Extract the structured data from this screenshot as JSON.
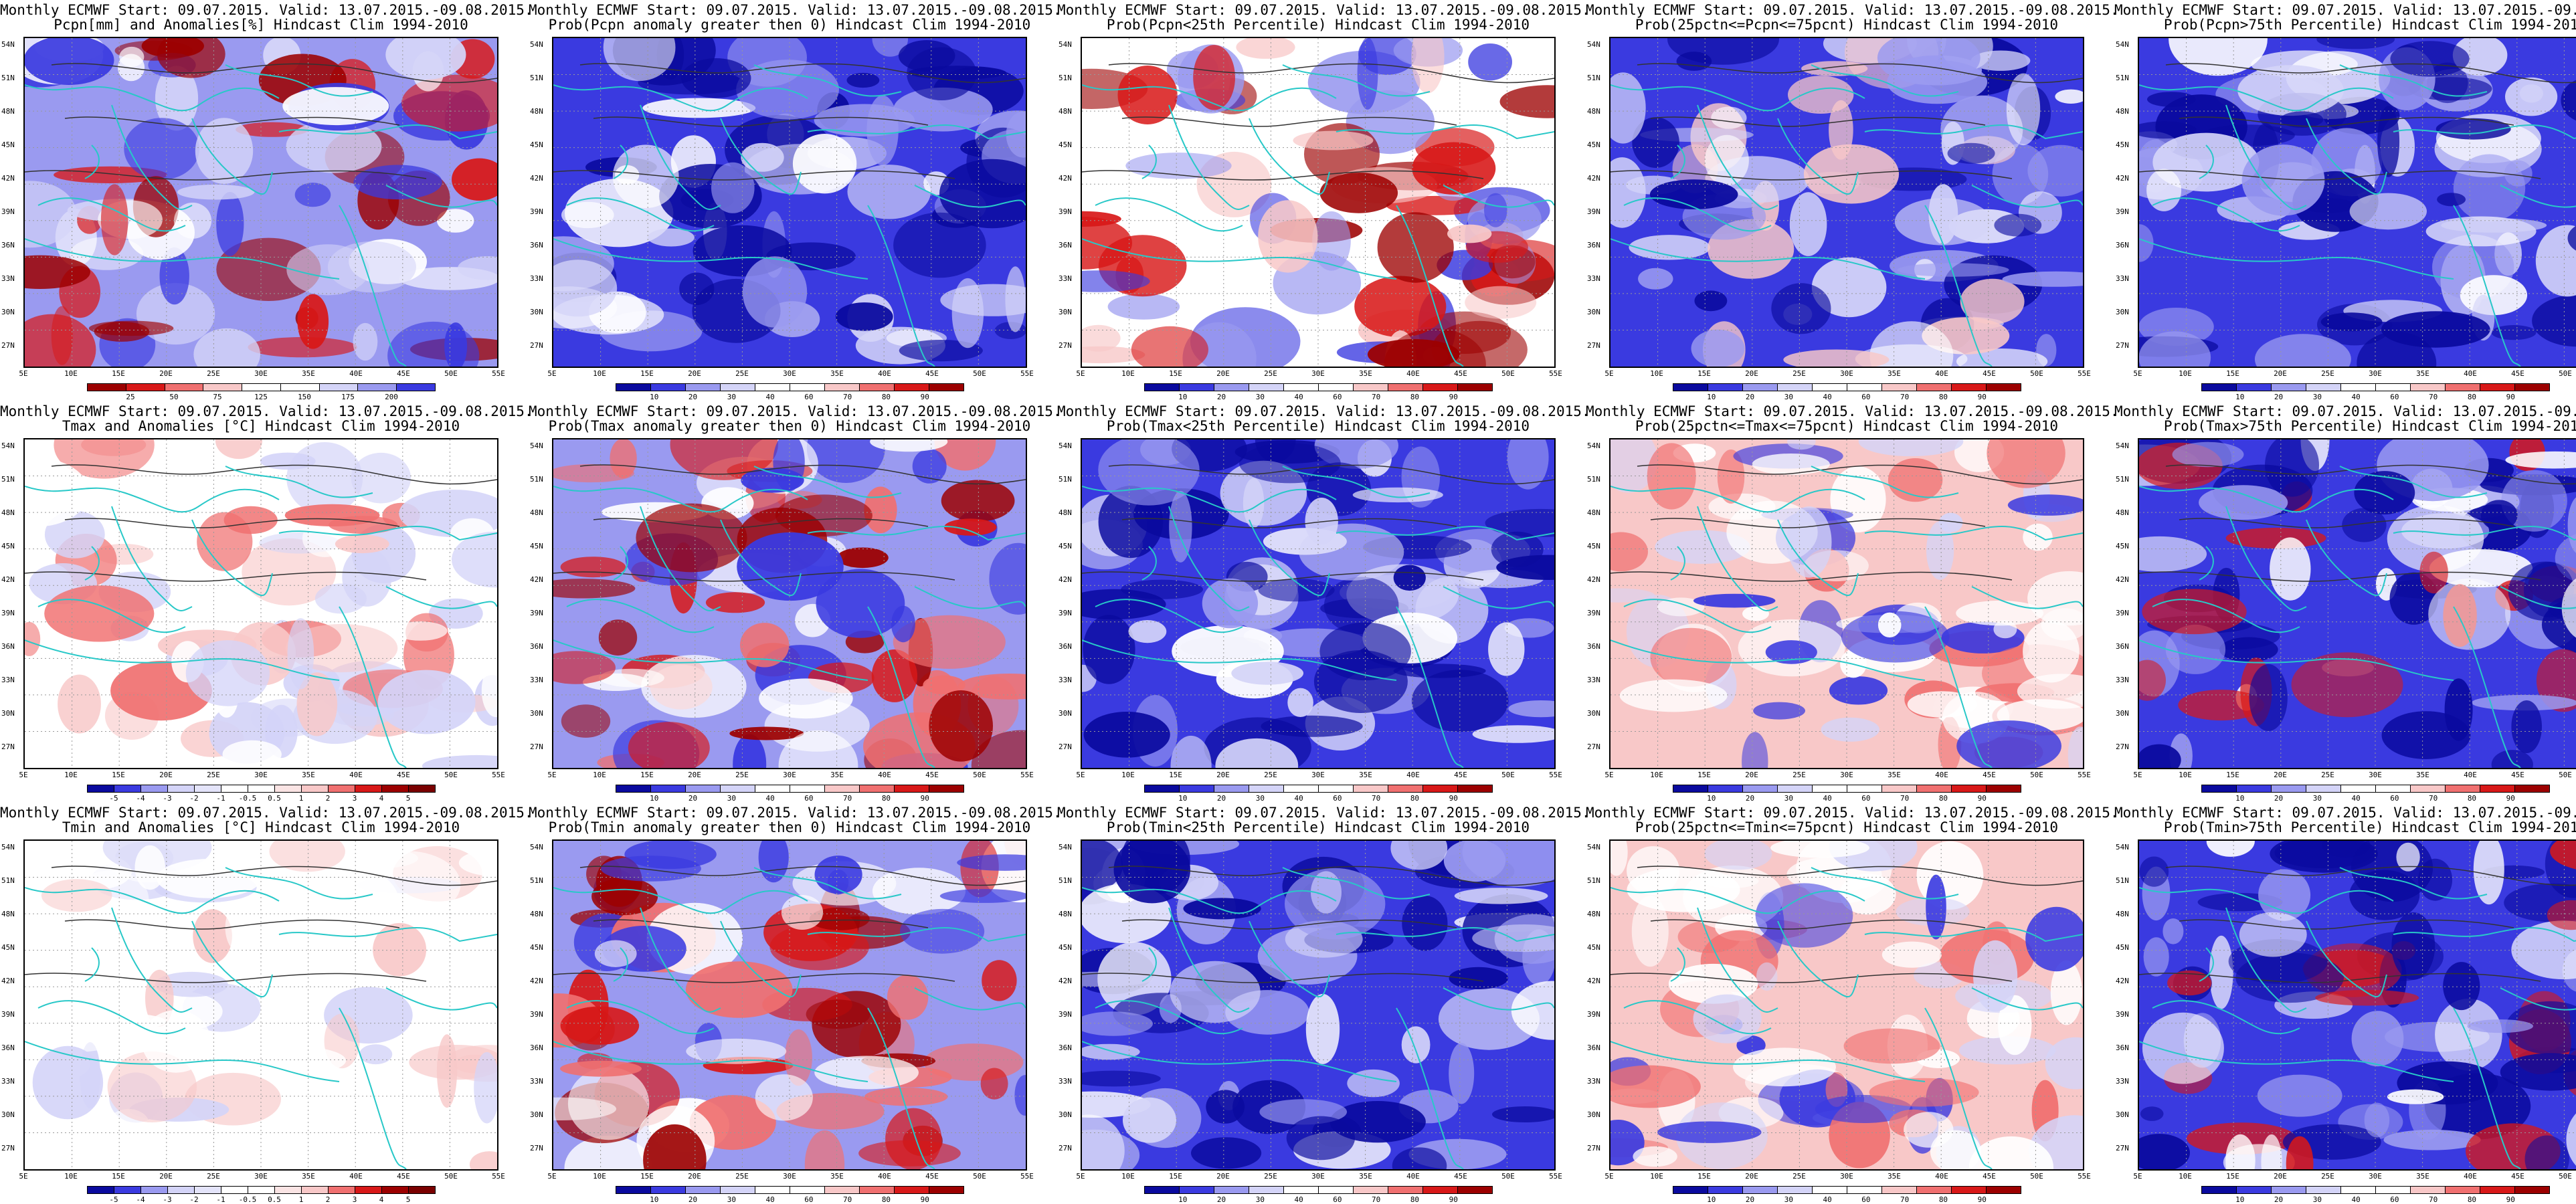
{
  "common": {
    "header": "Monthly ECMWF Start: 09.07.2015. Valid: 13.07.2015.-09.08.2015.",
    "lat_labels": [
      "54N",
      "51N",
      "48N",
      "45N",
      "42N",
      "39N",
      "36N",
      "33N",
      "30N",
      "27N"
    ],
    "lon_labels": [
      "5E",
      "10E",
      "15E",
      "20E",
      "25E",
      "30E",
      "35E",
      "40E",
      "45E",
      "50E",
      "55E"
    ],
    "colors": {
      "coast": "#28c8c8",
      "contour": "#333333",
      "dark_blue": "#0a0a9e",
      "blue": "#3a3ae0",
      "light_blue": "#9a9af0",
      "pale_blue": "#d4d4f8",
      "white": "#ffffff",
      "pale_red": "#f8c8c8",
      "light_red": "#f07070",
      "red": "#d81818",
      "dark_red": "#9c0000"
    }
  },
  "scales": {
    "prob": [
      "10",
      "20",
      "30",
      "40",
      "60",
      "70",
      "80",
      "90"
    ],
    "pcpn": [
      "25",
      "50",
      "75",
      "125",
      "150",
      "175",
      "200"
    ],
    "temp": [
      "-5",
      "-4",
      "-3",
      "-2",
      "-1",
      "-0.5",
      "0.5",
      "1",
      "2",
      "3",
      "4",
      "5"
    ]
  },
  "panels": [
    {
      "subtitle": "Pcpn[mm] and Anomalies[%] Hindcast Clim 1994-2010",
      "scale": "pcpn",
      "palette": "pcpn"
    },
    {
      "subtitle": "Prob(Pcpn anomaly greater then 0) Hindcast Clim 1994-2010",
      "scale": "prob",
      "palette": "blue"
    },
    {
      "subtitle": "Prob(Pcpn<25th Percentile) Hindcast Clim 1994-2010",
      "scale": "prob",
      "palette": "mixed_red"
    },
    {
      "subtitle": "Prob(25pctn<=Pcpn<=75pcnt) Hindcast Clim 1994-2010",
      "scale": "prob",
      "palette": "blue_white"
    },
    {
      "subtitle": "Prob(Pcpn>75th Percentile) Hindcast Clim 1994-2010",
      "scale": "prob",
      "palette": "blue"
    },
    {
      "subtitle": "Tmax and Anomalies [°C] Hindcast Clim 1994-2010",
      "scale": "temp",
      "palette": "anom_light"
    },
    {
      "subtitle": "Prob(Tmax anomaly greater then 0) Hindcast Clim 1994-2010",
      "scale": "prob",
      "palette": "red_west"
    },
    {
      "subtitle": "Prob(Tmax<25th Percentile) Hindcast Clim 1994-2010",
      "scale": "prob",
      "palette": "blue"
    },
    {
      "subtitle": "Prob(25pctn<=Tmax<=75pcnt) Hindcast Clim 1994-2010",
      "scale": "prob",
      "palette": "pink"
    },
    {
      "subtitle": "Prob(Tmax>75th Percentile) Hindcast Clim 1994-2010",
      "scale": "prob",
      "palette": "blue_redspot"
    },
    {
      "subtitle": "Tmin and Anomalies [°C] Hindcast Clim 1994-2010",
      "scale": "temp",
      "palette": "anom_white"
    },
    {
      "subtitle": "Prob(Tmin anomaly greater then 0) Hindcast Clim 1994-2010",
      "scale": "prob",
      "palette": "red_west"
    },
    {
      "subtitle": "Prob(Tmin<25th Percentile) Hindcast Clim 1994-2010",
      "scale": "prob",
      "palette": "blue"
    },
    {
      "subtitle": "Prob(25pctn<=Tmin<=75pcnt) Hindcast Clim 1994-2010",
      "scale": "prob",
      "palette": "pink"
    },
    {
      "subtitle": "Prob(Tmin>75th Percentile) Hindcast Clim 1994-2010",
      "scale": "prob",
      "palette": "blue_redspot"
    }
  ]
}
